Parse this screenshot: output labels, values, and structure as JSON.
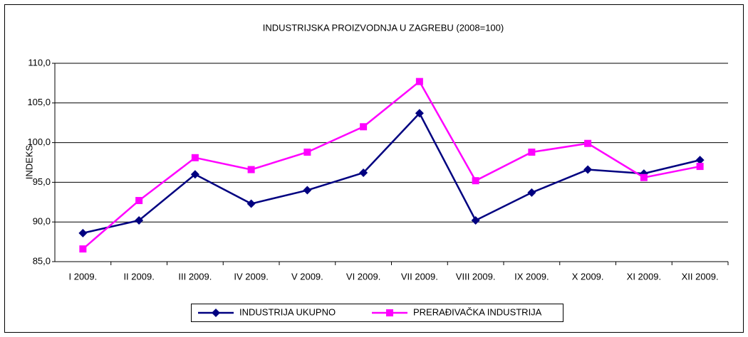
{
  "chart_data": {
    "type": "line",
    "title": "INDUSTRIJSKA PROIZVODNJA U ZAGREBU (2008=100)",
    "y_label": "INDEKS",
    "categories": [
      "I 2009.",
      "II 2009.",
      "III 2009.",
      "IV 2009.",
      "V 2009.",
      "VI 2009.",
      "VII 2009.",
      "VIII 2009.",
      "IX 2009.",
      "X 2009.",
      "XI 2009.",
      "XII 2009."
    ],
    "series": [
      {
        "name": "INDUSTRIJA UKUPNO",
        "color": "#000080",
        "marker": "diamond",
        "values": [
          88.6,
          90.2,
          96.0,
          92.3,
          94.0,
          96.2,
          103.7,
          90.2,
          93.7,
          96.6,
          96.1,
          97.8
        ]
      },
      {
        "name": "PRERAĐIVAČKA INDUSTRIJA",
        "color": "#ff00ff",
        "marker": "square",
        "values": [
          86.6,
          92.7,
          98.1,
          96.6,
          98.8,
          102.0,
          107.7,
          95.2,
          98.8,
          99.9,
          95.6,
          97.0
        ]
      }
    ],
    "ylim": [
      85,
      110
    ],
    "yticks": [
      {
        "value": 85,
        "label": "85,0"
      },
      {
        "value": 90,
        "label": "90,0"
      },
      {
        "value": 95,
        "label": "95,0"
      },
      {
        "value": 100,
        "label": "100,0"
      },
      {
        "value": 105,
        "label": "105,0"
      },
      {
        "value": 110,
        "label": "110,0"
      }
    ],
    "grid": true,
    "legend": "bottom"
  }
}
